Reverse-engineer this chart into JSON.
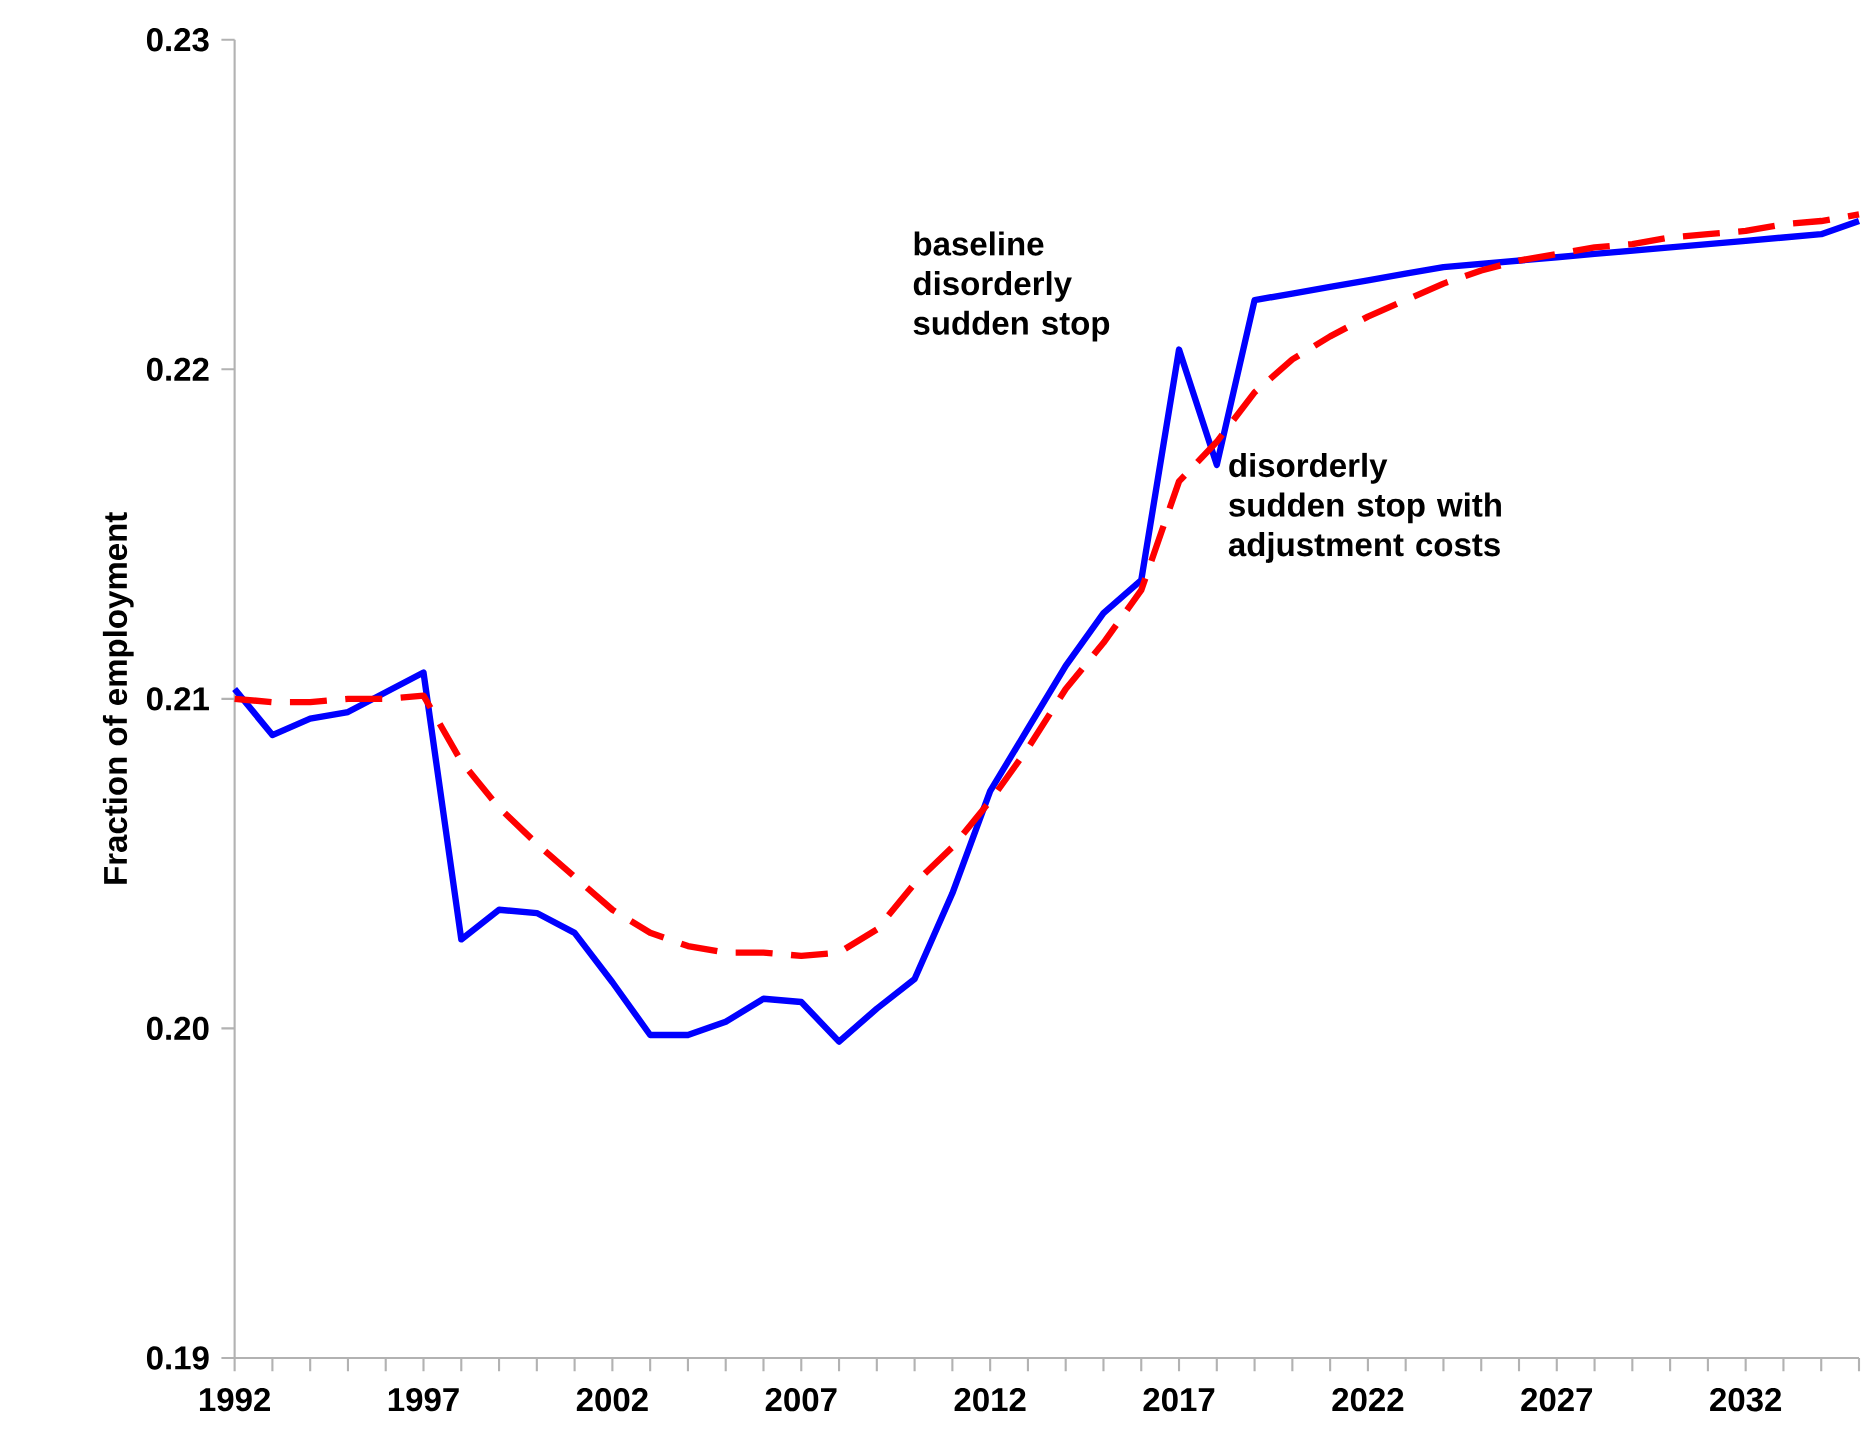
{
  "chart_data": {
    "type": "line",
    "ylabel": "Fraction of employment",
    "x": [
      1992,
      1993,
      1994,
      1995,
      1996,
      1997,
      1998,
      1999,
      2000,
      2001,
      2002,
      2003,
      2004,
      2005,
      2006,
      2007,
      2008,
      2009,
      2010,
      2011,
      2012,
      2013,
      2014,
      2015,
      2016,
      2017,
      2018,
      2019,
      2020,
      2021,
      2022,
      2023,
      2024,
      2025,
      2026,
      2027,
      2028,
      2029,
      2030,
      2031,
      2032,
      2033,
      2034,
      2035
    ],
    "series": [
      {
        "name": "baseline disorderly sudden stop",
        "color": "#0000ff",
        "line_style": "solid",
        "values": [
          0.2103,
          0.2089,
          0.2094,
          0.2096,
          0.2102,
          0.2108,
          0.2027,
          0.2036,
          0.2035,
          0.2029,
          0.2014,
          0.1998,
          0.1998,
          0.2002,
          0.2009,
          0.2008,
          0.1996,
          0.2006,
          0.2015,
          0.2041,
          0.2072,
          0.2091,
          0.211,
          0.2126,
          0.2136,
          0.2206,
          0.2171,
          0.2221,
          0.2223,
          0.2225,
          0.2227,
          0.2229,
          0.2231,
          0.2232,
          0.2233,
          0.2234,
          0.2235,
          0.2236,
          0.2237,
          0.2238,
          0.2239,
          0.224,
          0.2241,
          0.2245
        ]
      },
      {
        "name": "disorderly sudden stop with adjustment costs",
        "color": "#ff0000",
        "line_style": "dashed",
        "values": [
          0.21,
          0.2099,
          0.2099,
          0.21,
          0.21,
          0.2101,
          0.2081,
          0.2067,
          0.2056,
          0.2046,
          0.2036,
          0.2029,
          0.2025,
          0.2023,
          0.2023,
          0.2022,
          0.2023,
          0.203,
          0.2044,
          0.2055,
          0.2069,
          0.2085,
          0.2103,
          0.2117,
          0.2133,
          0.2166,
          0.2178,
          0.2193,
          0.2203,
          0.221,
          0.2216,
          0.2221,
          0.2226,
          0.223,
          0.2233,
          0.2235,
          0.2237,
          0.2238,
          0.224,
          0.2241,
          0.2242,
          0.2244,
          0.2245,
          0.2247
        ]
      }
    ],
    "xlim": [
      1992,
      2035
    ],
    "xticks": [
      1992,
      {
        "value": 1993,
        "label": null
      },
      {
        "value": 1994,
        "label": null
      },
      {
        "value": 1995,
        "label": null
      },
      {
        "value": 1996,
        "label": null
      },
      1997,
      {
        "value": 1998,
        "label": null
      },
      {
        "value": 1999,
        "label": null
      },
      {
        "value": 2000,
        "label": null
      },
      {
        "value": 2001,
        "label": null
      },
      2002,
      {
        "value": 2003,
        "label": null
      },
      {
        "value": 2004,
        "label": null
      },
      {
        "value": 2005,
        "label": null
      },
      {
        "value": 2006,
        "label": null
      },
      2007,
      {
        "value": 2008,
        "label": null
      },
      {
        "value": 2009,
        "label": null
      },
      {
        "value": 2010,
        "label": null
      },
      {
        "value": 2011,
        "label": null
      },
      2012,
      {
        "value": 2013,
        "label": null
      },
      {
        "value": 2014,
        "label": null
      },
      {
        "value": 2015,
        "label": null
      },
      {
        "value": 2016,
        "label": null
      },
      2017,
      {
        "value": 2018,
        "label": null
      },
      {
        "value": 2019,
        "label": null
      },
      {
        "value": 2020,
        "label": null
      },
      {
        "value": 2021,
        "label": null
      },
      2022,
      {
        "value": 2023,
        "label": null
      },
      {
        "value": 2024,
        "label": null
      },
      {
        "value": 2025,
        "label": null
      },
      {
        "value": 2026,
        "label": null
      },
      2027,
      {
        "value": 2028,
        "label": null
      },
      {
        "value": 2029,
        "label": null
      },
      {
        "value": 2030,
        "label": null
      },
      {
        "value": 2031,
        "label": null
      },
      2032,
      {
        "value": 2033,
        "label": null
      },
      {
        "value": 2034,
        "label": null
      },
      {
        "value": 2035,
        "label": null
      }
    ],
    "ylim": [
      0.19,
      0.23
    ],
    "yticks": [
      0.19,
      {
        "value": 0.2,
        "label": "0.20"
      },
      0.21,
      0.22,
      0.23
    ],
    "grid": false,
    "marker": "none"
  }
}
